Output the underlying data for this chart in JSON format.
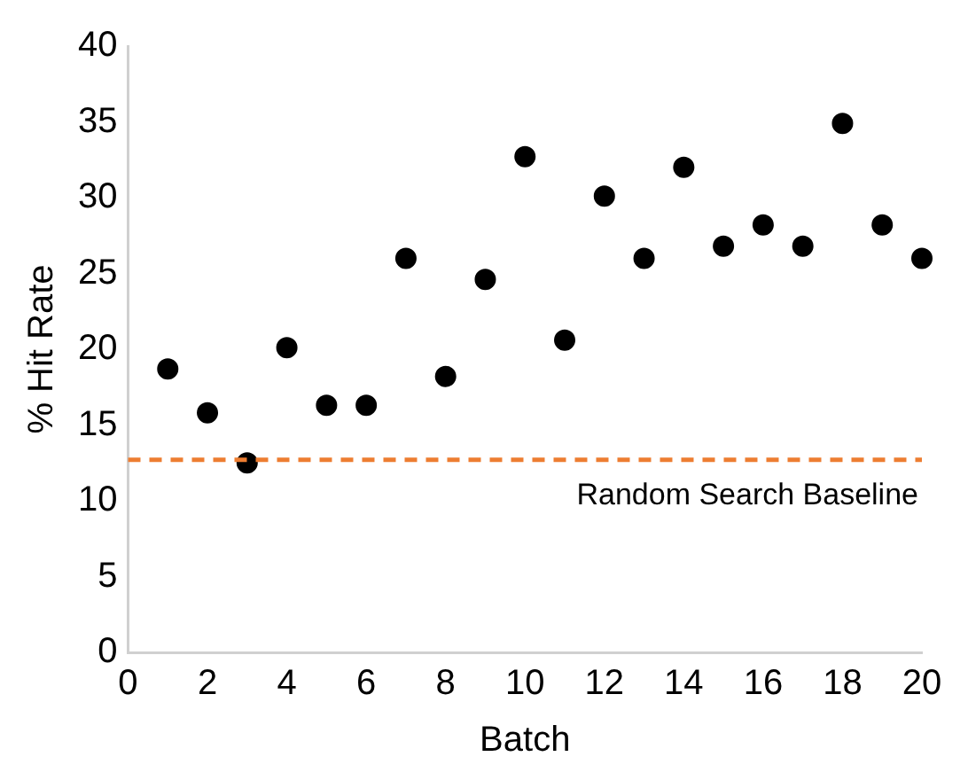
{
  "chart_data": {
    "type": "scatter",
    "xlabel": "Batch",
    "ylabel": "% Hit Rate",
    "x": [
      1,
      2,
      3,
      4,
      5,
      6,
      7,
      8,
      9,
      10,
      11,
      12,
      13,
      14,
      15,
      16,
      17,
      18,
      19,
      20
    ],
    "series": [
      {
        "color": "#000000",
        "values": [
          18.7,
          15.8,
          12.5,
          20.1,
          16.3,
          16.3,
          26.0,
          18.2,
          24.6,
          32.7,
          20.6,
          30.1,
          26.0,
          32.0,
          26.8,
          28.2,
          26.8,
          34.9,
          28.2,
          26.0
        ]
      }
    ],
    "xlim": [
      0,
      20
    ],
    "xticks": [
      0,
      2,
      4,
      6,
      8,
      10,
      12,
      14,
      16,
      18,
      20
    ],
    "ylim": [
      0,
      40
    ],
    "yticks": [
      0,
      5,
      10,
      15,
      20,
      25,
      30,
      35,
      40
    ],
    "marker": "circle",
    "grid": false,
    "legend": false,
    "ref_lines": [
      {
        "axis": "y",
        "value": 12.7,
        "label": "Random Search Baseline",
        "color": "#ed7d31",
        "line_style": "dashed"
      }
    ]
  }
}
